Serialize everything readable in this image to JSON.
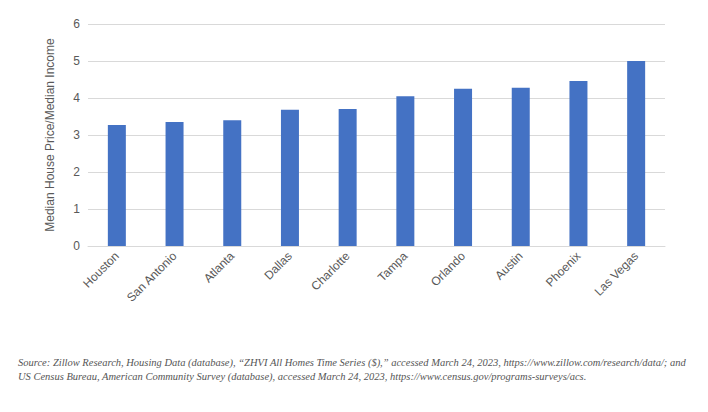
{
  "chart_data": {
    "type": "bar",
    "y_label": "Median House Price/Median Income",
    "categories": [
      "Houston",
      "San Antonio",
      "Atlanta",
      "Dallas",
      "Charlotte",
      "Tampa",
      "Orlando",
      "Austin",
      "Phoenix",
      "Las Vegas"
    ],
    "values": [
      3.27,
      3.35,
      3.4,
      3.68,
      3.7,
      4.05,
      4.25,
      4.28,
      4.46,
      5.0
    ],
    "color": "#4472c4",
    "ylim": [
      0,
      6
    ],
    "yticks": [
      0,
      1,
      2,
      3,
      4,
      5,
      6
    ],
    "grid": true,
    "source": "Source: Zillow Research, Housing Data (database), “ZHVI All Homes Time Series ($),” accessed March 24, 2023, https://www.zillow.com/research/data/; and US Census Bureau, American Community Survey (database), accessed March 24, 2023, https://www.census.gov/programs-surveys/acs."
  }
}
